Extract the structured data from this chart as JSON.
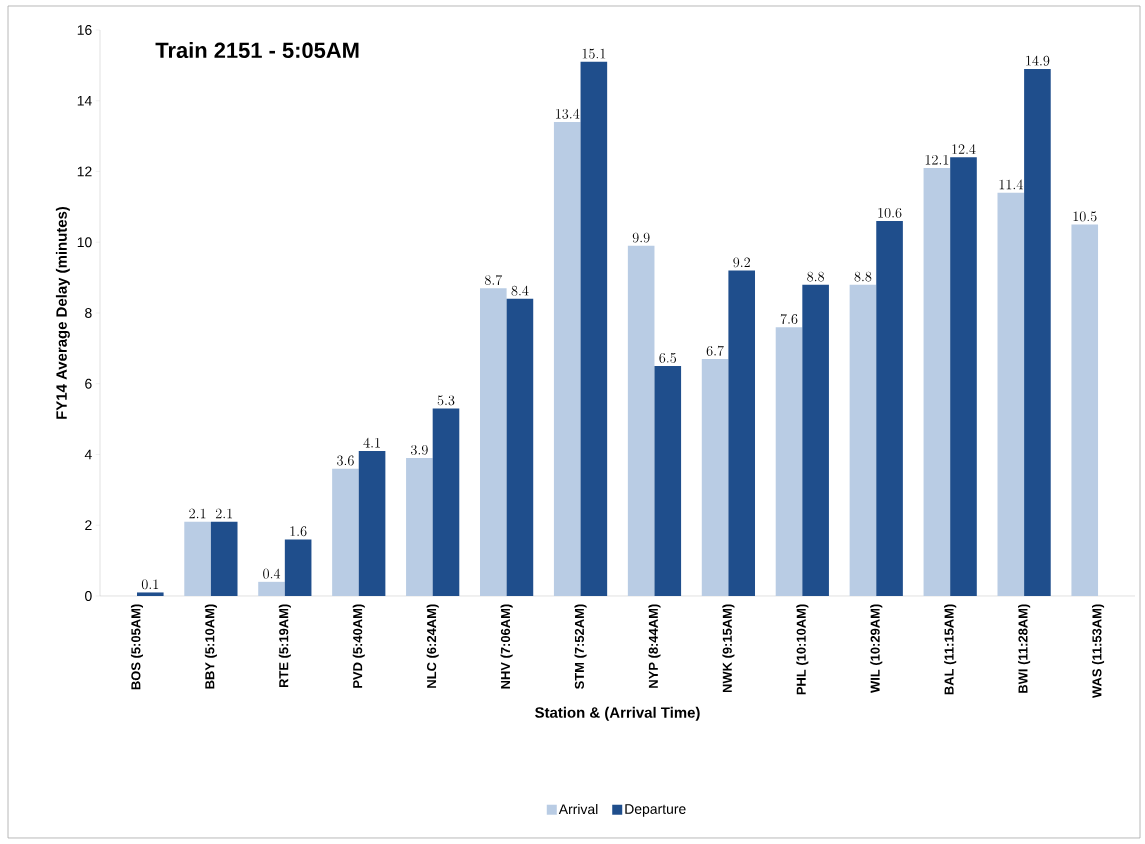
{
  "chart_data": {
    "type": "bar",
    "title": "Train 2151 - 5:05AM",
    "xlabel": "Station & (Arrival Time)",
    "ylabel": "FY14 Average Delay (minutes)",
    "categories": [
      "BOS (5:05AM)",
      "BBY (5:10AM)",
      "RTE (5:19AM)",
      "PVD (5:40AM)",
      "NLC (6:24AM)",
      "NHV (7:06AM)",
      "STM (7:52AM)",
      "NYP (8:44AM)",
      "NWK (9:15AM)",
      "PHL (10:10AM)",
      "WIL (10:29AM)",
      "BAL (11:15AM)",
      "BWI (11:28AM)",
      "WAS (11:53AM)"
    ],
    "series": [
      {
        "name": "Arrival",
        "color": "#b9cce4",
        "values": [
          null,
          2.1,
          0.4,
          3.6,
          3.9,
          8.7,
          13.4,
          9.9,
          6.7,
          7.6,
          8.8,
          12.1,
          11.4,
          10.5
        ]
      },
      {
        "name": "Departure",
        "color": "#1f4e8c",
        "values": [
          0.1,
          2.1,
          1.6,
          4.1,
          5.3,
          8.4,
          15.1,
          6.5,
          9.2,
          8.8,
          10.6,
          12.4,
          14.9,
          null
        ]
      }
    ],
    "ylim": [
      0,
      16
    ],
    "yticks": [
      0,
      2,
      4,
      6,
      8,
      10,
      12,
      14,
      16
    ],
    "data_labels": true,
    "grid": false,
    "legend": "bottom"
  }
}
